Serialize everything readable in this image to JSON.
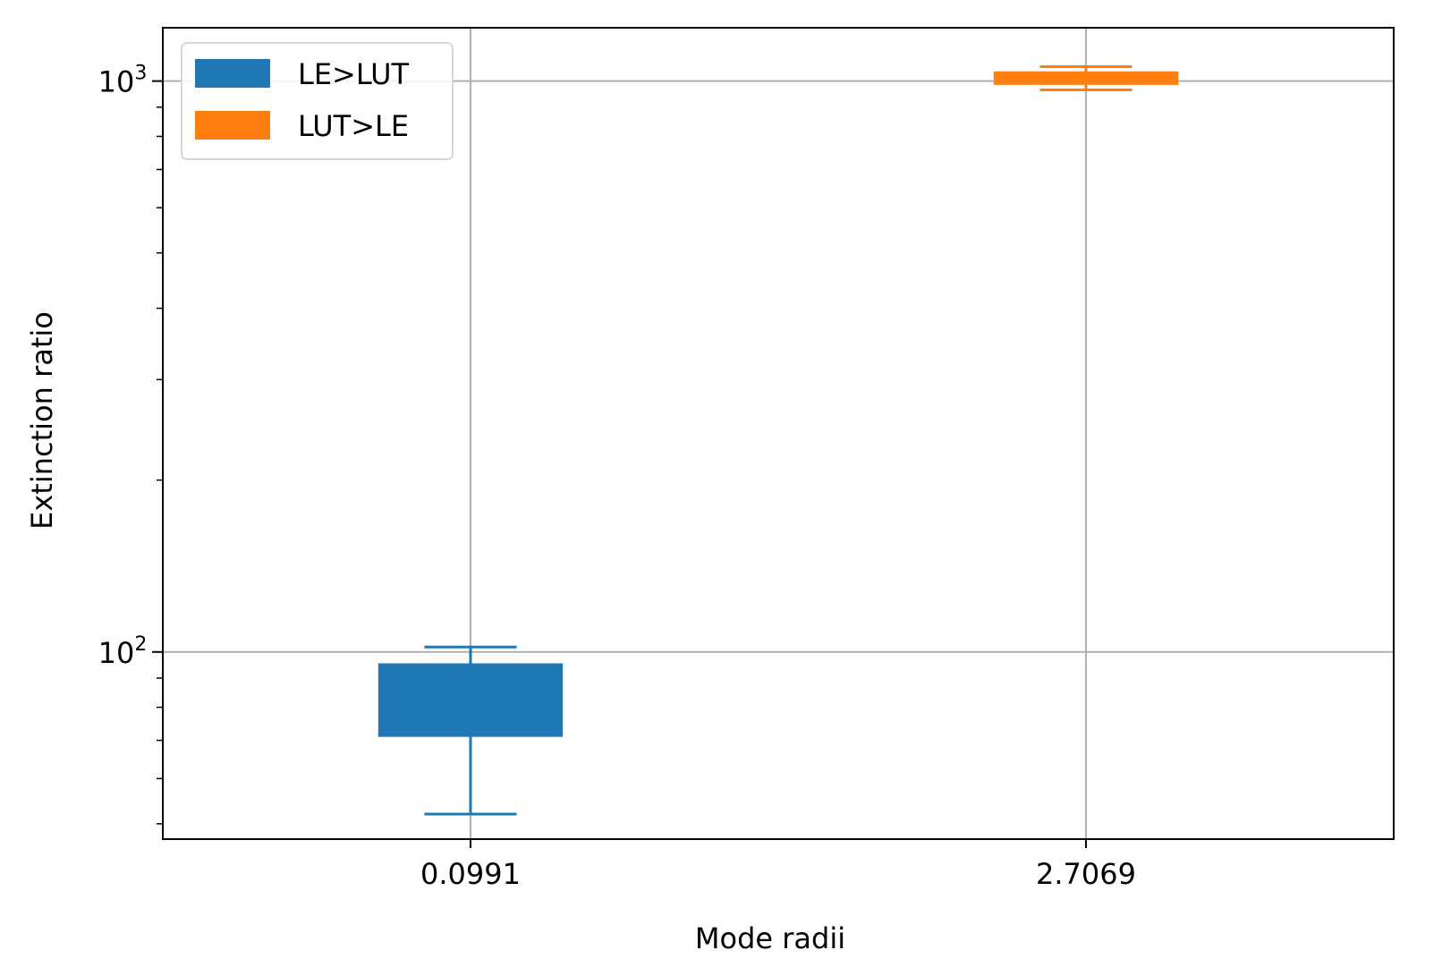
{
  "chart_data": {
    "type": "box",
    "xlabel": "Mode radii",
    "ylabel": "Extinction ratio",
    "yscale": "log",
    "ylim": [
      47,
      1240
    ],
    "grid": true,
    "legend_position": "top-left",
    "categories": [
      "0.0991",
      "2.7069"
    ],
    "y_tick_labels": [
      {
        "base": "10",
        "exp": "2",
        "value": 100
      },
      {
        "base": "10",
        "exp": "3",
        "value": 1000
      }
    ],
    "series": [
      {
        "name": "LE>LUT",
        "color": "#1f77b4",
        "category_index": 0,
        "whisker_low": 52,
        "q1": 71,
        "q3": 95.5,
        "whisker_high": 102
      },
      {
        "name": "LUT>LE",
        "color": "#ff7f0e",
        "category_index": 1,
        "whisker_low": 965,
        "q1": 985,
        "q3": 1040,
        "whisker_high": 1060
      }
    ]
  }
}
